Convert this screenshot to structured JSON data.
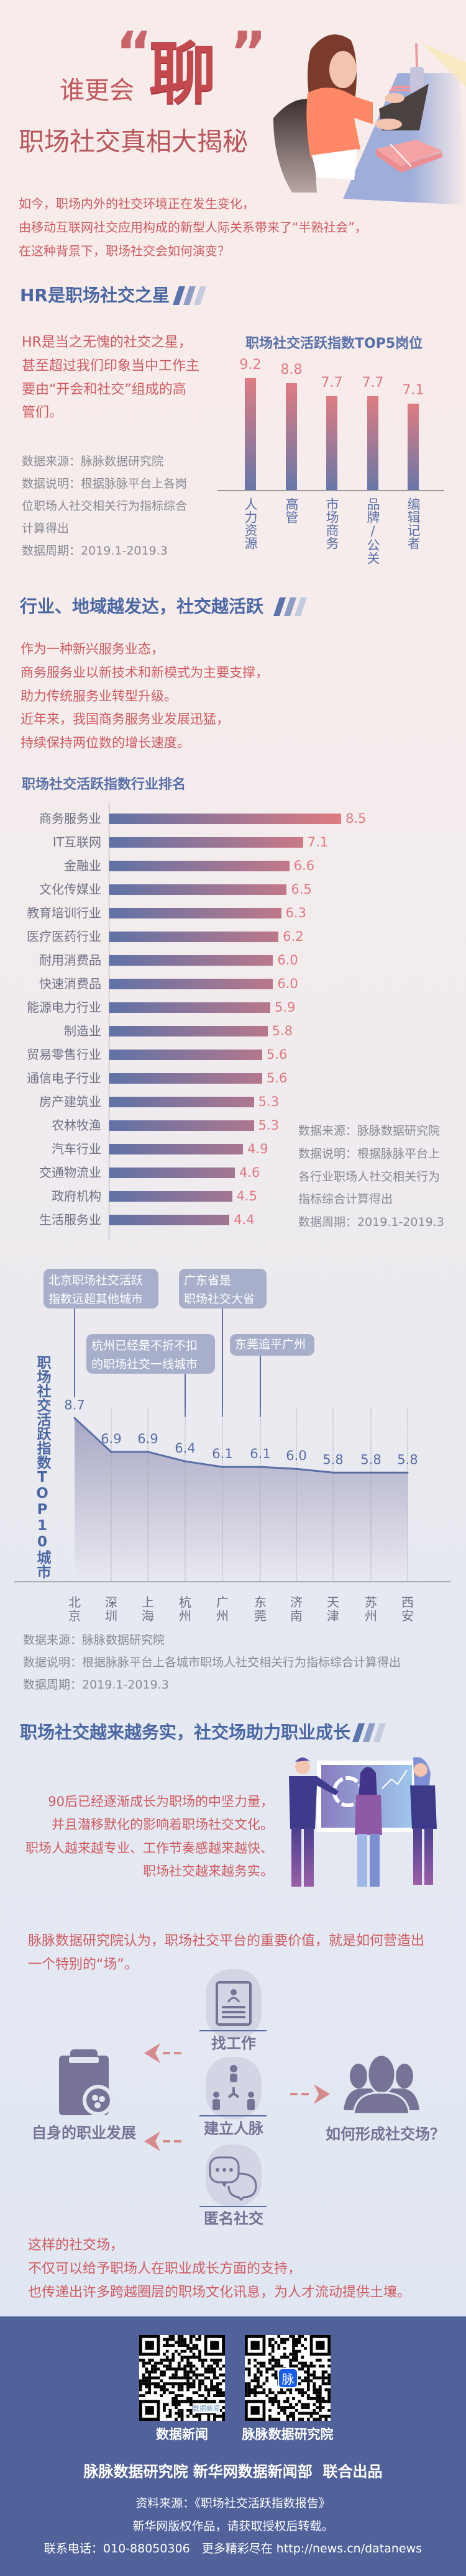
{
  "hero": {
    "prefix": "谁更会",
    "big_word": "聊",
    "open_quote": "“",
    "close_quote": "”",
    "title": "职场社交真相大揭秘",
    "intro_lines": [
      "如今，职场内外的社交环境正在发生变化，",
      "由移动互联网社交应用构成的新型人际关系带来了“半熟社会”，",
      "在这种背景下，职场社交会如何演变？"
    ]
  },
  "section1": {
    "heading": "HR是职场社交之星",
    "text_lines": [
      "HR是当之无愧的社交之星，",
      "甚至超过我们印象当中工作主",
      "要由“开会和社交”组成的高",
      "管们。"
    ],
    "note_lines": [
      "数据来源：脉脉数据研究院",
      "数据说明：根据脉脉平台上各岗",
      "位职场人社交相关行为指标综合",
      "计算得出",
      "数据周期：2019.1-2019.3"
    ]
  },
  "section2": {
    "heading": "行业、地域越发达，社交越活跃",
    "text_lines": [
      "作为一种新兴服务业态，",
      "商务服务业以新技术和新模式为主要支撑，",
      "助力传统服务业转型升级。",
      "近年来，我国商务服务业发展迅猛，",
      "持续保持两位数的增长速度。"
    ],
    "industry_note_lines": [
      "数据来源：脉脉数据研究院",
      "数据说明：根据脉脉平台上",
      "各行业职场人社交相关行为",
      "指标综合计算得出",
      "数据周期：2019.1-2019.3"
    ],
    "callouts": [
      "北京职场社交活跃\n指数远超其他城市",
      "广东省是\n职场社交大省",
      "杭州已经是不折不扣\n的职场社交一线城市",
      "东莞追平广州"
    ],
    "city_note_lines": [
      "数据来源：脉脉数据研究院",
      "数据说明：根据脉脉平台上各城市职场人社交相关行为指标综合计算得出",
      "数据周期：2019.1-2019.3"
    ]
  },
  "section3": {
    "heading": "职场社交越来越务实，社交场助力职业成长",
    "text_lines": [
      "90后已经逐渐成长为职场的中坚力量，",
      "并且潜移默化的影响着职场社交文化。",
      "职场人越来越专业、工作节奏感越来越快、",
      "职场社交越来越务实。"
    ],
    "view_lines": [
      "脉脉数据研究院认为，职场社交平台的重要价值，就是如何营造出",
      "一个特别的“场”。"
    ],
    "diagram": {
      "left_label": "自身的职业发展",
      "right_label": "如何形成社交场？",
      "items": [
        {
          "label": "找工作",
          "icon": "resume-card-icon"
        },
        {
          "label": "建立人脉",
          "icon": "network-people-icon"
        },
        {
          "label": "匿名社交",
          "icon": "chat-bubbles-icon"
        }
      ]
    },
    "closing_lines": [
      "这样的社交场，",
      "不仅可以给予职场人在职业成长方面的支持，",
      "也传递出许多跨越圈层的职场文化讯息，为人才流动提供土壤。"
    ]
  },
  "footer": {
    "qr_labels": [
      "数据新闻",
      "脉脉数据研究院"
    ],
    "qr_inner": [
      "数据新闻",
      "脉"
    ],
    "producers": "脉脉数据研究院 新华网数据新闻部  联合出品",
    "source": "资料来源：《职场社交活跃指数报告》",
    "copyright": "新华网版权作品，请获取授权后转载。",
    "contact": "联系电话：010-88050306　更多精彩尽在 http://news.cn/datanews"
  },
  "colors": {
    "accent_red": "#cf5b61",
    "accent_blue": "#4b67a3",
    "footer_bg": "#51629b",
    "bar_start": "#5f72a6",
    "bar_end": "#e07a80"
  },
  "chart_data": [
    {
      "type": "bar",
      "title": "职场社交活跃指数TOP5岗位",
      "categories": [
        "人力资源",
        "高管",
        "市场商务",
        "品牌/公关",
        "编辑记者"
      ],
      "values": [
        9.2,
        8.8,
        7.7,
        7.7,
        7.1
      ],
      "xlabel": "",
      "ylabel": "",
      "ylim": [
        0,
        10
      ]
    },
    {
      "type": "bar",
      "orientation": "horizontal",
      "title": "职场社交活跃指数行业排名",
      "categories": [
        "商务服务业",
        "IT互联网",
        "金融业",
        "文化传媒业",
        "教育培训行业",
        "医疗医药行业",
        "耐用消费品",
        "快速消费品",
        "能源电力行业",
        "制造业",
        "贸易零售行业",
        "通信电子行业",
        "房产建筑业",
        "农林牧渔",
        "汽车行业",
        "交通物流业",
        "政府机构",
        "生活服务业"
      ],
      "values": [
        8.5,
        7.1,
        6.6,
        6.5,
        6.3,
        6.2,
        6.0,
        6.0,
        5.9,
        5.8,
        5.6,
        5.6,
        5.3,
        5.3,
        4.9,
        4.6,
        4.5,
        4.4
      ],
      "xlim": [
        0,
        8.5
      ]
    },
    {
      "type": "area",
      "ylabel": "职场社交活跃指数TOP10城市",
      "categories": [
        "北京",
        "深圳",
        "上海",
        "杭州",
        "广州",
        "东莞",
        "济南",
        "天津",
        "苏州",
        "西安"
      ],
      "values": [
        8.7,
        6.9,
        6.9,
        6.4,
        6.1,
        6.1,
        6.0,
        5.8,
        5.8,
        5.8
      ],
      "ylim": [
        0,
        8.7
      ]
    }
  ]
}
